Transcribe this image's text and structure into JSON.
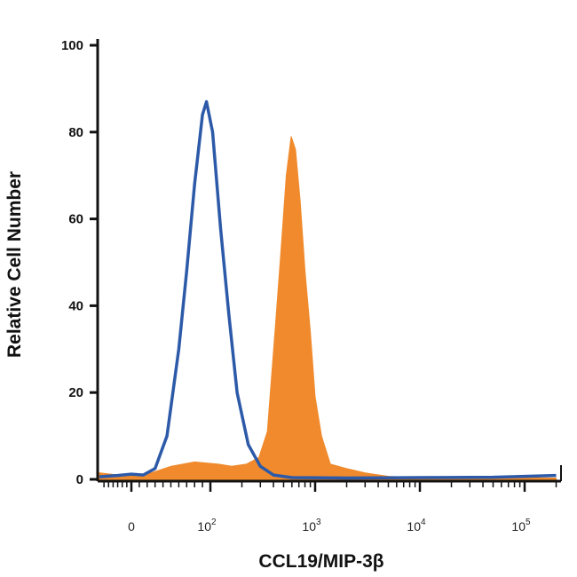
{
  "chart_data": {
    "type": "area",
    "xlabel": "CCL19/MIP-3β",
    "ylabel": "Relative Cell Number",
    "x_scale": "biexponential (log above 10^2)",
    "xlim": [
      -70,
      200000
    ],
    "ylim": [
      0,
      100
    ],
    "y_ticks": [
      "0",
      "20",
      "40",
      "60",
      "80",
      "100"
    ],
    "x_ticks": [
      {
        "base": "0",
        "exp": ""
      },
      {
        "base": "10",
        "exp": "2"
      },
      {
        "base": "10",
        "exp": "3"
      },
      {
        "base": "10",
        "exp": "4"
      },
      {
        "base": "10",
        "exp": "5"
      }
    ],
    "grid": false,
    "series": [
      {
        "style": "outline",
        "color": "#2d5aa8",
        "points": [
          [
            -70,
            0.6
          ],
          [
            -30,
            0.9
          ],
          [
            0,
            1.2
          ],
          [
            15,
            1.0
          ],
          [
            30,
            2.5
          ],
          [
            45,
            10
          ],
          [
            60,
            30
          ],
          [
            70,
            48
          ],
          [
            80,
            68
          ],
          [
            90,
            84
          ],
          [
            95,
            87
          ],
          [
            105,
            80
          ],
          [
            125,
            58
          ],
          [
            150,
            38
          ],
          [
            180,
            20
          ],
          [
            230,
            8
          ],
          [
            300,
            3
          ],
          [
            400,
            1
          ],
          [
            600,
            0.4
          ],
          [
            2000,
            0.3
          ],
          [
            10000,
            0.4
          ],
          [
            50000,
            0.5
          ],
          [
            200000,
            0.9
          ]
        ]
      },
      {
        "style": "filled",
        "color": "#f08a2c",
        "points": [
          [
            -70,
            1.5
          ],
          [
            -30,
            1.0
          ],
          [
            0,
            0.8
          ],
          [
            25,
            1.5
          ],
          [
            50,
            3
          ],
          [
            80,
            4
          ],
          [
            120,
            3.5
          ],
          [
            160,
            3
          ],
          [
            220,
            3.5
          ],
          [
            290,
            5
          ],
          [
            350,
            11
          ],
          [
            420,
            36
          ],
          [
            470,
            52
          ],
          [
            530,
            70
          ],
          [
            590,
            79
          ],
          [
            650,
            76
          ],
          [
            720,
            64
          ],
          [
            800,
            48
          ],
          [
            900,
            34
          ],
          [
            1000,
            19
          ],
          [
            1150,
            10
          ],
          [
            1400,
            3.5
          ],
          [
            2000,
            2.5
          ],
          [
            3000,
            1.5
          ],
          [
            5000,
            0.7
          ],
          [
            10000,
            0.4
          ],
          [
            50000,
            0.3
          ],
          [
            200000,
            0.3
          ]
        ]
      }
    ]
  }
}
